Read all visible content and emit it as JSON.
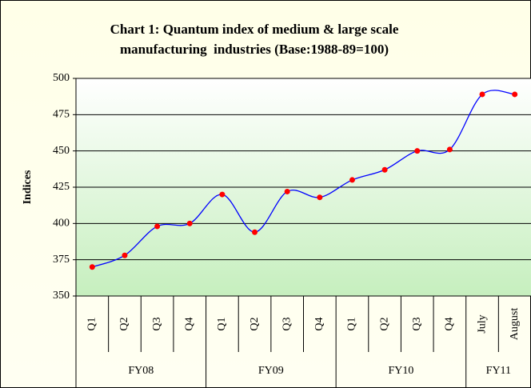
{
  "chart_data": {
    "type": "line",
    "title": [
      "Chart 1: Quantum index of medium & large scale",
      "manufacturing  industries (Base:1988-89=100)"
    ],
    "y_label": "Indices",
    "groups": [
      {
        "name": "FY08",
        "categories": [
          "Q1",
          "Q2",
          "Q3",
          "Q4"
        ]
      },
      {
        "name": "FY09",
        "categories": [
          "Q1",
          "Q2",
          "Q3",
          "Q4"
        ]
      },
      {
        "name": "FY10",
        "categories": [
          "Q1",
          "Q2",
          "Q3",
          "Q4"
        ]
      },
      {
        "name": "FY11",
        "categories": [
          "July",
          "August"
        ]
      }
    ],
    "values": [
      370,
      378,
      398,
      400,
      420,
      394,
      422,
      418,
      430,
      437,
      450,
      451,
      489,
      489
    ],
    "color": "#0000ff",
    "marker_color": "#ff0000",
    "ylim": [
      350,
      500
    ],
    "yticks": [
      350,
      375,
      400,
      425,
      450,
      475,
      500
    ],
    "grid": true
  }
}
